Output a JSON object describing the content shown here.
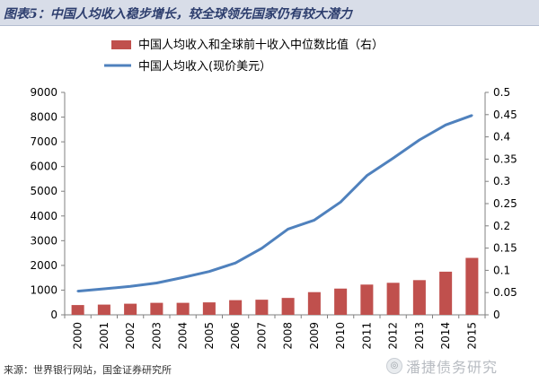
{
  "header": {
    "title": "图表5：中国人均收入稳步增长，较全球领先国家仍有较大潜力"
  },
  "footer": {
    "source": "来源：世界银行网站，国金证券研究所",
    "watermark": "潘捷债务研究",
    "watermark_icon": "wechat-icon"
  },
  "chart_data": {
    "type": "bar",
    "categories": [
      "2000",
      "2001",
      "2002",
      "2003",
      "2004",
      "2005",
      "2006",
      "2007",
      "2008",
      "2009",
      "2010",
      "2011",
      "2012",
      "2013",
      "2014",
      "2015"
    ],
    "series": [
      {
        "name": "中国人均收入和全球前十收入中位数比值（右）",
        "type": "bar",
        "axis": "right",
        "color": "#c0504d",
        "values": [
          0.022,
          0.023,
          0.025,
          0.027,
          0.027,
          0.028,
          0.033,
          0.034,
          0.038,
          0.051,
          0.059,
          0.068,
          0.072,
          0.078,
          0.097,
          0.128
        ]
      },
      {
        "name": "中国人均收入(现价美元）",
        "type": "line",
        "axis": "left",
        "color": "#4f81bd",
        "values": [
          959,
          1053,
          1149,
          1289,
          1509,
          1753,
          2099,
          2694,
          3468,
          3832,
          4560,
          5634,
          6338,
          7078,
          7684,
          8069
        ]
      }
    ],
    "y_left": {
      "min": 0,
      "max": 9000,
      "ticks": [
        0,
        1000,
        2000,
        3000,
        4000,
        5000,
        6000,
        7000,
        8000,
        9000
      ]
    },
    "y_right": {
      "min": 0,
      "max": 0.5,
      "ticks": [
        "0",
        "0.05",
        "0.1",
        "0.15",
        "0.2",
        "0.25",
        "0.3",
        "0.35",
        "0.4",
        "0.45",
        "0.5"
      ]
    },
    "grid": false,
    "legend_position": "top-center"
  }
}
